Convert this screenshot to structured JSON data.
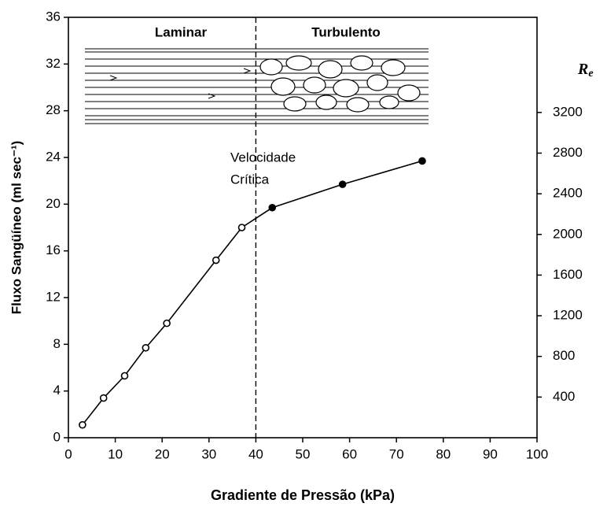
{
  "chart_data": {
    "type": "line",
    "xlabel": "Gradiente de Pressão (kPa)",
    "ylabel": "Fluxo Sangüíneo (ml sec⁻¹)",
    "y2label": "R",
    "y2label_sub": "e",
    "annotations": [
      "Laminar",
      "Turbulento",
      "Velocidade",
      "Crítica"
    ],
    "vline": 40,
    "x": [
      3,
      7.5,
      12,
      16.5,
      21,
      31.5,
      37,
      43.5,
      58.5,
      75.5
    ],
    "series": [
      {
        "color": "#000000",
        "values": [
          1.1,
          3.4,
          5.3,
          7.7,
          9.8,
          15.2,
          18,
          19.7,
          21.7,
          23.7
        ],
        "filled": [
          false,
          false,
          false,
          false,
          false,
          false,
          false,
          true,
          true,
          true
        ]
      }
    ],
    "xlim": [
      0,
      100
    ],
    "xticks": [
      0,
      10,
      20,
      30,
      40,
      50,
      60,
      70,
      80,
      90,
      100
    ],
    "ylim": [
      0,
      36
    ],
    "yticks": [
      0,
      4,
      8,
      12,
      16,
      20,
      24,
      28,
      32,
      36
    ],
    "y2lim": [
      0,
      4136
    ],
    "y2ticks": [
      400,
      800,
      1200,
      1600,
      2000,
      2400,
      2800,
      3200
    ]
  }
}
